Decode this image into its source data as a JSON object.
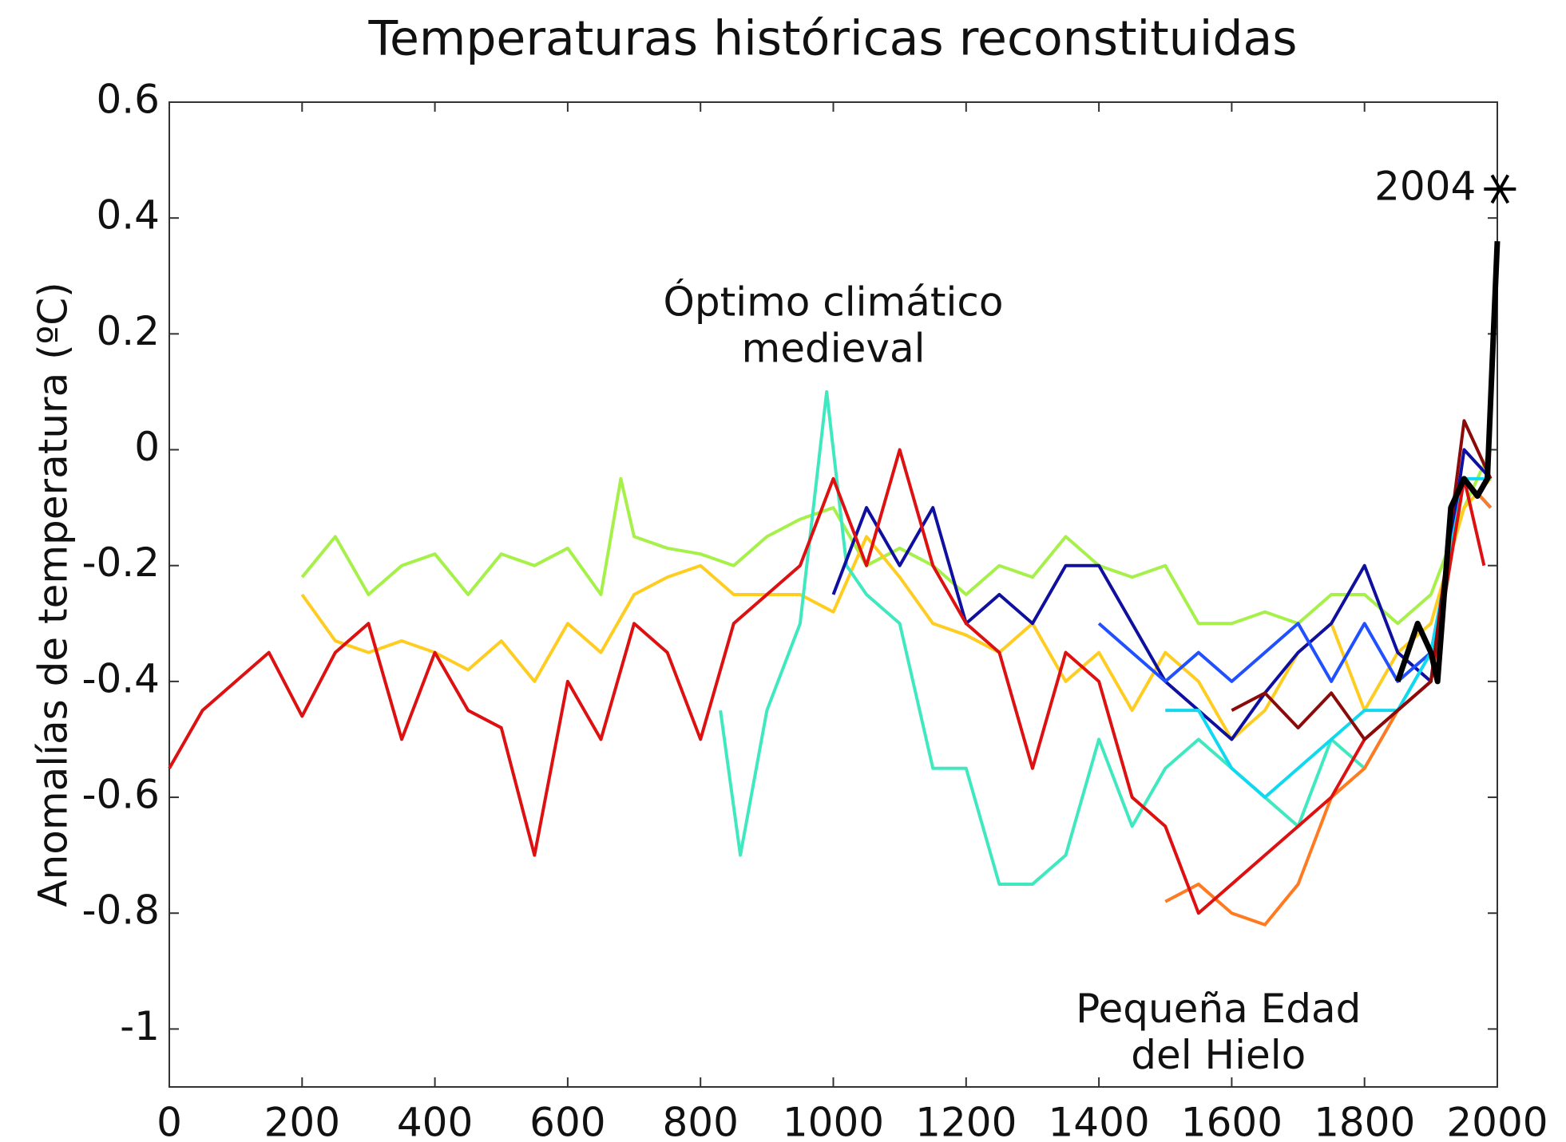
{
  "chart_data": {
    "type": "line",
    "title": "Temperaturas históricas reconstituidas",
    "y_label": "Anomalías de temperatura (ºC)",
    "xlim": [
      0,
      2000
    ],
    "ylim": [
      -1.1,
      0.6
    ],
    "xticks": [
      0,
      200,
      400,
      600,
      800,
      1000,
      1200,
      1400,
      1600,
      1800,
      2000
    ],
    "yticks": [
      0.6,
      0.4,
      0.2,
      0,
      -0.2,
      -0.4,
      -0.6,
      -0.8,
      -1
    ],
    "grid": false,
    "annotations": [
      {
        "text": [
          "Óptimo climático",
          "medieval"
        ],
        "x": 1000,
        "y": 0.25
      },
      {
        "text": [
          "Pequeña Edad",
          "del Hielo"
        ],
        "x": 1580,
        "y": -0.97
      }
    ],
    "point": {
      "label": "2004",
      "x": 2004,
      "value": 0.45,
      "color": "#000000"
    },
    "series": [
      {
        "color": "#a6f04a",
        "x": [
          200,
          250,
          300,
          350,
          400,
          450,
          500,
          550,
          600,
          650,
          680,
          700,
          750,
          800,
          850,
          900,
          950,
          1000,
          1050,
          1100,
          1150,
          1200,
          1250,
          1300,
          1350,
          1400,
          1450,
          1500,
          1550,
          1600,
          1650,
          1700,
          1750,
          1800,
          1850,
          1900,
          1950,
          1990
        ],
        "values": [
          -0.22,
          -0.15,
          -0.25,
          -0.2,
          -0.18,
          -0.25,
          -0.18,
          -0.2,
          -0.17,
          -0.25,
          -0.05,
          -0.15,
          -0.17,
          -0.18,
          -0.2,
          -0.15,
          -0.12,
          -0.1,
          -0.2,
          -0.17,
          -0.2,
          -0.25,
          -0.2,
          -0.22,
          -0.15,
          -0.2,
          -0.22,
          -0.2,
          -0.3,
          -0.3,
          -0.28,
          -0.3,
          -0.25,
          -0.25,
          -0.3,
          -0.25,
          -0.1,
          0.0
        ]
      },
      {
        "color": "#ffcc22",
        "x": [
          200,
          250,
          300,
          350,
          400,
          450,
          500,
          550,
          600,
          650,
          700,
          750,
          800,
          850,
          900,
          950,
          1000,
          1050,
          1100,
          1150,
          1200,
          1250,
          1300,
          1350,
          1400,
          1450,
          1500,
          1550,
          1600,
          1650,
          1700,
          1750,
          1800,
          1850,
          1900,
          1950,
          1990
        ],
        "values": [
          -0.25,
          -0.33,
          -0.35,
          -0.33,
          -0.35,
          -0.38,
          -0.33,
          -0.4,
          -0.3,
          -0.35,
          -0.25,
          -0.22,
          -0.2,
          -0.25,
          -0.25,
          -0.25,
          -0.28,
          -0.15,
          -0.22,
          -0.3,
          -0.32,
          -0.35,
          -0.3,
          -0.4,
          -0.35,
          -0.45,
          -0.35,
          -0.4,
          -0.5,
          -0.45,
          -0.35,
          -0.3,
          -0.45,
          -0.35,
          -0.3,
          -0.1,
          -0.05
        ]
      },
      {
        "color": "#40e8c0",
        "x": [
          830,
          860,
          900,
          950,
          990,
          1020,
          1050,
          1100,
          1150,
          1200,
          1250,
          1300,
          1350,
          1400,
          1450,
          1500,
          1550,
          1600,
          1650,
          1700,
          1750,
          1800,
          1850,
          1900,
          1950,
          1990
        ],
        "values": [
          -0.45,
          -0.7,
          -0.45,
          -0.3,
          0.1,
          -0.2,
          -0.25,
          -0.3,
          -0.55,
          -0.55,
          -0.75,
          -0.75,
          -0.7,
          -0.5,
          -0.65,
          -0.55,
          -0.5,
          -0.55,
          -0.6,
          -0.65,
          -0.5,
          -0.55,
          -0.45,
          -0.35,
          -0.05,
          -0.1
        ]
      },
      {
        "color": "#1010a0",
        "x": [
          1000,
          1050,
          1100,
          1150,
          1200,
          1250,
          1300,
          1350,
          1400,
          1450,
          1500,
          1550,
          1600,
          1650,
          1700,
          1750,
          1800,
          1850,
          1900,
          1950,
          1990
        ],
        "values": [
          -0.25,
          -0.1,
          -0.2,
          -0.1,
          -0.3,
          -0.25,
          -0.3,
          -0.2,
          -0.2,
          -0.3,
          -0.4,
          -0.45,
          -0.5,
          -0.42,
          -0.35,
          -0.3,
          -0.2,
          -0.35,
          -0.4,
          0.0,
          -0.05
        ]
      },
      {
        "color": "#2050ff",
        "x": [
          1400,
          1450,
          1500,
          1550,
          1600,
          1650,
          1700,
          1750,
          1800,
          1850,
          1900,
          1950,
          1990
        ],
        "values": [
          -0.3,
          -0.35,
          -0.4,
          -0.35,
          -0.4,
          -0.35,
          -0.3,
          -0.4,
          -0.3,
          -0.4,
          -0.35,
          -0.05,
          -0.1
        ]
      },
      {
        "color": "#10d8f0",
        "x": [
          1500,
          1550,
          1600,
          1650,
          1700,
          1750,
          1800,
          1850,
          1900,
          1950,
          1990
        ],
        "values": [
          -0.45,
          -0.45,
          -0.55,
          -0.6,
          -0.55,
          -0.5,
          -0.45,
          -0.45,
          -0.35,
          -0.05,
          -0.05
        ]
      },
      {
        "color": "#ff7a20",
        "x": [
          1500,
          1550,
          1600,
          1650,
          1700,
          1750,
          1800,
          1850,
          1900,
          1950,
          1990
        ],
        "values": [
          -0.78,
          -0.75,
          -0.8,
          -0.82,
          -0.75,
          -0.6,
          -0.55,
          -0.45,
          -0.4,
          -0.05,
          -0.1
        ]
      },
      {
        "color": "#dd1111",
        "x": [
          0,
          50,
          100,
          150,
          200,
          250,
          300,
          350,
          400,
          450,
          500,
          550,
          600,
          650,
          700,
          750,
          800,
          850,
          900,
          950,
          1000,
          1050,
          1100,
          1150,
          1200,
          1250,
          1300,
          1350,
          1400,
          1450,
          1500,
          1550,
          1600,
          1650,
          1700,
          1750,
          1800,
          1850,
          1900,
          1950,
          1980
        ],
        "values": [
          -0.55,
          -0.45,
          -0.4,
          -0.35,
          -0.46,
          -0.35,
          -0.3,
          -0.5,
          -0.35,
          -0.45,
          -0.48,
          -0.7,
          -0.4,
          -0.5,
          -0.3,
          -0.35,
          -0.5,
          -0.3,
          -0.25,
          -0.2,
          -0.05,
          -0.2,
          0.0,
          -0.2,
          -0.3,
          -0.35,
          -0.55,
          -0.35,
          -0.4,
          -0.6,
          -0.65,
          -0.8,
          -0.75,
          -0.7,
          -0.65,
          -0.6,
          -0.5,
          -0.45,
          -0.4,
          -0.05,
          -0.2
        ]
      },
      {
        "color": "#8b0a0a",
        "x": [
          1600,
          1650,
          1700,
          1750,
          1800,
          1850,
          1900,
          1950,
          1990
        ],
        "values": [
          -0.45,
          -0.42,
          -0.48,
          -0.42,
          -0.5,
          -0.45,
          -0.4,
          0.05,
          -0.05
        ]
      },
      {
        "color": "#000000",
        "x": [
          1850,
          1880,
          1900,
          1910,
          1930,
          1950,
          1970,
          1985,
          2000
        ],
        "values": [
          -0.4,
          -0.3,
          -0.35,
          -0.4,
          -0.1,
          -0.05,
          -0.08,
          -0.05,
          0.36
        ]
      }
    ]
  }
}
